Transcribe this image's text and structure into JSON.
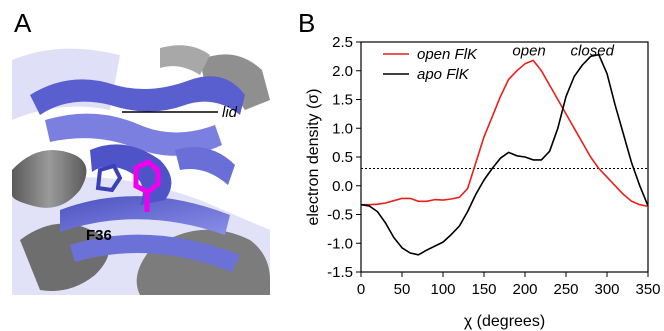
{
  "panel_a": {
    "letter": "A",
    "lid_label": "lid",
    "residue_label": "F36"
  },
  "panel_b": {
    "letter": "B"
  },
  "colors": {
    "open_series": "#e8201c",
    "apo_series": "#000000",
    "protein_blue": "#6a6fd8",
    "protein_gray": "#7a7a7a",
    "residue_magenta": "#ee00ee"
  },
  "chart_data": {
    "type": "line",
    "xlabel": "χ (degrees)",
    "ylabel": "electron density (σ)",
    "xlim": [
      0,
      350
    ],
    "ylim": [
      -1.5,
      2.5
    ],
    "x_ticks": [
      0,
      50,
      100,
      150,
      200,
      250,
      300,
      350
    ],
    "y_ticks": [
      -1.5,
      -1.0,
      -0.5,
      0.0,
      0.5,
      1.0,
      1.5,
      2.0,
      2.5
    ],
    "x_tick_labels": [
      "0",
      "50",
      "100",
      "150",
      "200",
      "250",
      "300",
      "350"
    ],
    "y_tick_labels": [
      "-1.5",
      "-1.0",
      "-0.5",
      "0.0",
      "0.5",
      "1.0",
      "1.5",
      "2.0",
      "2.5"
    ],
    "threshold": 0.3,
    "legend_placement": "top-left",
    "annotations": [
      {
        "text": "open",
        "x": 205,
        "y": 2.35
      },
      {
        "text": "closed",
        "x": 282,
        "y": 2.35
      }
    ],
    "series": [
      {
        "name": "open FlK",
        "color": "#e8201c",
        "x": [
          0,
          10,
          20,
          30,
          40,
          50,
          60,
          70,
          80,
          90,
          100,
          110,
          120,
          130,
          140,
          150,
          160,
          170,
          180,
          190,
          200,
          210,
          220,
          230,
          240,
          250,
          260,
          270,
          280,
          290,
          300,
          310,
          320,
          330,
          340,
          350
        ],
        "y": [
          -0.33,
          -0.33,
          -0.32,
          -0.3,
          -0.26,
          -0.22,
          -0.22,
          -0.27,
          -0.27,
          -0.24,
          -0.25,
          -0.23,
          -0.2,
          -0.05,
          0.4,
          0.85,
          1.2,
          1.55,
          1.85,
          2.0,
          2.12,
          2.18,
          2.0,
          1.75,
          1.5,
          1.25,
          1.0,
          0.75,
          0.5,
          0.3,
          0.15,
          0.0,
          -0.15,
          -0.27,
          -0.33,
          -0.36
        ]
      },
      {
        "name": "apo FlK",
        "color": "#000000",
        "x": [
          0,
          10,
          20,
          30,
          40,
          50,
          60,
          70,
          80,
          90,
          100,
          110,
          120,
          130,
          140,
          150,
          160,
          170,
          180,
          190,
          200,
          210,
          220,
          230,
          240,
          250,
          260,
          270,
          280,
          290,
          300,
          310,
          320,
          330,
          340,
          350
        ],
        "y": [
          -0.33,
          -0.35,
          -0.45,
          -0.65,
          -0.9,
          -1.08,
          -1.17,
          -1.2,
          -1.12,
          -1.05,
          -0.98,
          -0.85,
          -0.7,
          -0.45,
          -0.15,
          0.1,
          0.3,
          0.48,
          0.58,
          0.52,
          0.5,
          0.45,
          0.45,
          0.6,
          1.0,
          1.55,
          1.9,
          2.1,
          2.25,
          2.28,
          1.95,
          1.4,
          0.9,
          0.4,
          0.0,
          -0.35
        ]
      }
    ]
  }
}
